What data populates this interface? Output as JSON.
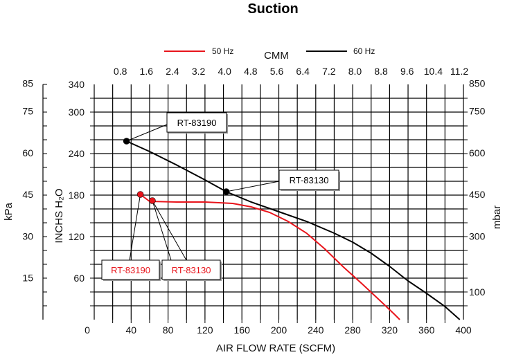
{
  "chart_data": {
    "type": "line",
    "title": "Suction",
    "xlabel": "AIR FLOW RATE (SCFM)",
    "x_top_label": "CMM",
    "ylabel": "INCHS H₂O",
    "y_left_outer_label": "kPa",
    "y_right_label": "mbar",
    "xlim": [
      0,
      400
    ],
    "ylim": [
      0,
      340
    ],
    "grid": true,
    "legend_position": "top",
    "x_ticks": [
      "0",
      "40",
      "80",
      "120",
      "160",
      "200",
      "240",
      "280",
      "320",
      "360",
      "400"
    ],
    "x_top_ticks": [
      "0.8",
      "1.6",
      "2.4",
      "3.2",
      "4.0",
      "4.8",
      "5.6",
      "6.4",
      "7.2",
      "8.0",
      "8.8",
      "9.6",
      "10.4",
      "11.2"
    ],
    "y_ticks": [
      "60",
      "120",
      "180",
      "240",
      "300",
      "340"
    ],
    "y_kpa_ticks": [
      "15",
      "30",
      "45",
      "60",
      "75",
      "85"
    ],
    "y_mbar_ticks": [
      "100",
      "300",
      "450",
      "600",
      "750",
      "850"
    ],
    "series": [
      {
        "name": "50 Hz",
        "color": "#e8141b",
        "x": [
          50,
          60,
          90,
          120,
          150,
          170,
          190,
          210,
          230,
          250,
          270,
          290,
          310,
          325,
          331
        ],
        "y": [
          181,
          171,
          170,
          170,
          168,
          163,
          155,
          142,
          125,
          102,
          76,
          52,
          27,
          8,
          0
        ]
      },
      {
        "name": "60 Hz",
        "color": "#000000",
        "x": [
          35,
          60,
          90,
          120,
          143,
          170,
          200,
          230,
          260,
          280,
          300,
          320,
          340,
          360,
          380,
          396
        ],
        "y": [
          258,
          243,
          223,
          202,
          185,
          170,
          156,
          142,
          125,
          112,
          96,
          77,
          56,
          38,
          19,
          0
        ]
      }
    ],
    "annotations": [
      {
        "text": "RT-83190",
        "series": "60 Hz",
        "x": 35,
        "y": 258
      },
      {
        "text": "RT-83130",
        "series": "60 Hz",
        "x": 143,
        "y": 185
      },
      {
        "text": "RT-83190",
        "series": "50 Hz",
        "x": 50,
        "y": 181
      },
      {
        "text": "RT-83130",
        "series": "50 Hz",
        "x": 63,
        "y": 172
      }
    ]
  }
}
